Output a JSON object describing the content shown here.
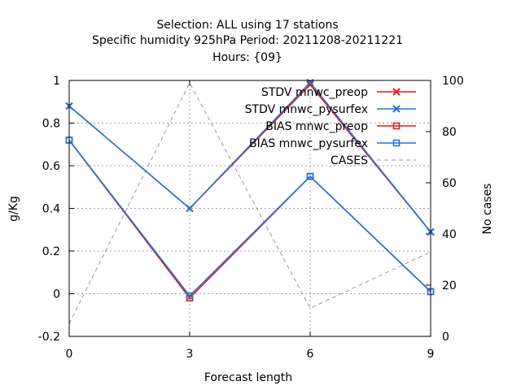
{
  "chart_data": {
    "type": "line",
    "title_lines": [
      "Selection: ALL using    17 stations",
      "Specific humidity 925hPa   Period: 20211208-20211221",
      "Hours: {09}"
    ],
    "xlabel": "Forecast length",
    "ylabel": "g/Kg",
    "y2label": "No cases",
    "x": [
      0,
      3,
      6,
      9
    ],
    "x_ticks": [
      "0",
      "3",
      "6",
      "9"
    ],
    "xlim": [
      0,
      9
    ],
    "ylim": [
      -0.2,
      1.0
    ],
    "y_ticks": [
      "-0.2",
      "0",
      "0.2",
      "0.4",
      "0.6",
      "0.8",
      "1"
    ],
    "y2lim": [
      0,
      100
    ],
    "y2_ticks": [
      "0",
      "20",
      "40",
      "60",
      "80",
      "100"
    ],
    "grid": true,
    "legend_position": "top-right",
    "series": [
      {
        "name": "STDV mnwc_preop",
        "values": [
          0.88,
          0.4,
          0.98,
          0.29
        ],
        "color": "#e41a1c",
        "marker": "x",
        "dash": "solid",
        "axis": "y"
      },
      {
        "name": "STDV mnwc_pysurfex",
        "values": [
          0.88,
          0.4,
          0.99,
          0.29
        ],
        "color": "#1f77d4",
        "marker": "x",
        "dash": "solid",
        "axis": "y"
      },
      {
        "name": "BIAS mnwc_preop",
        "values": [
          0.72,
          -0.02,
          0.55,
          0.01
        ],
        "color": "#e41a1c",
        "marker": "square",
        "dash": "solid",
        "axis": "y"
      },
      {
        "name": "BIAS mnwc_pysurfex",
        "values": [
          0.72,
          -0.01,
          0.55,
          0.01
        ],
        "color": "#1f77d4",
        "marker": "square",
        "dash": "solid",
        "axis": "y"
      },
      {
        "name": "CASES",
        "values": [
          5,
          99,
          11,
          33
        ],
        "color": "#999999",
        "marker": "none",
        "dash": "dashed",
        "axis": "y2"
      }
    ]
  }
}
